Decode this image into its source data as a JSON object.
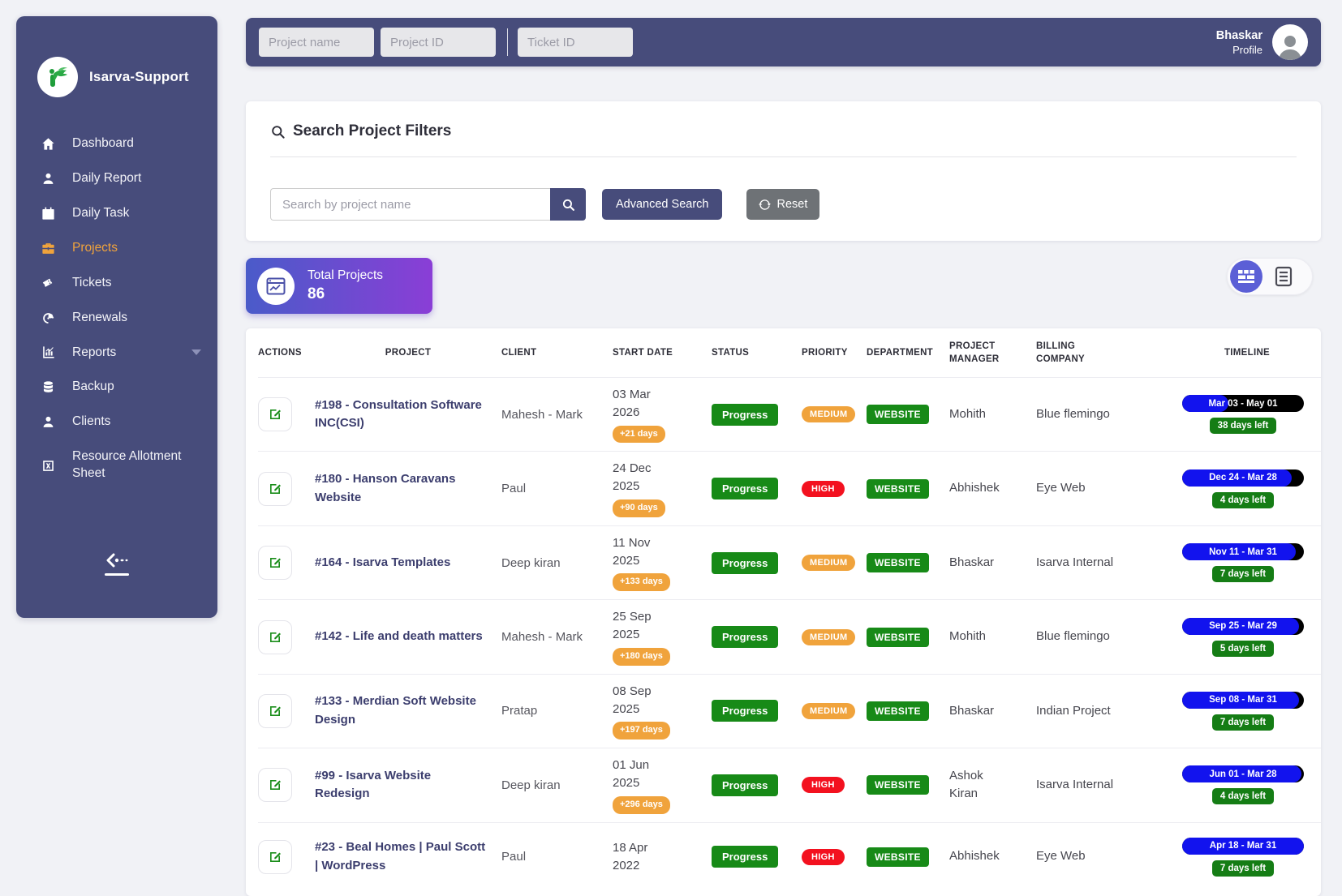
{
  "topbar": {
    "inputs": [
      {
        "placeholder": "Project name"
      },
      {
        "placeholder": "Project ID"
      },
      {
        "placeholder": "Ticket ID"
      }
    ],
    "profile": {
      "name": "Bhaskar",
      "role": "Profile"
    }
  },
  "sidebar": {
    "brand": "Isarva-Support",
    "items": [
      {
        "label": "Dashboard",
        "icon": "home-icon",
        "active": false
      },
      {
        "label": "Daily Report",
        "icon": "user-icon",
        "active": false
      },
      {
        "label": "Daily Task",
        "icon": "calendar-icon",
        "active": false
      },
      {
        "label": "Projects",
        "icon": "briefcase-icon",
        "active": true
      },
      {
        "label": "Tickets",
        "icon": "ticket-icon",
        "active": false
      },
      {
        "label": "Renewals",
        "icon": "renew-icon",
        "active": false
      },
      {
        "label": "Reports",
        "icon": "bar-chart-icon",
        "active": false,
        "has_caret": true
      },
      {
        "label": "Backup",
        "icon": "database-icon",
        "active": false
      },
      {
        "label": "Clients",
        "icon": "person-icon",
        "active": false
      },
      {
        "label": "Resource Allotment Sheet",
        "icon": "sheet-icon",
        "active": false
      }
    ]
  },
  "filters": {
    "title": "Search Project Filters",
    "search_placeholder": "Search by project name",
    "advanced_button": "Advanced Search",
    "reset_button": "Reset"
  },
  "summary": {
    "label": "Total Projects",
    "value": "86"
  },
  "table": {
    "headers": [
      "ACTIONS",
      "PROJECT",
      "CLIENT",
      "START DATE",
      "STATUS",
      "PRIORITY",
      "DEPARTMENT",
      "PROJECT MANAGER",
      "BILLING COMPANY",
      "TIMELINE"
    ],
    "rows": [
      {
        "project": "#198 - Consultation Software INC(CSI)",
        "client": "Mahesh - Mark",
        "start_date": "03 Mar 2026",
        "overdue": "+21 days",
        "status": "Progress",
        "priority": "MEDIUM",
        "department": "WEBSITE",
        "manager": "Mohith",
        "billing": "Blue flemingo",
        "timeline": {
          "range": "Mar 03 - May 01",
          "progress_pct": 38,
          "days_left": "38 days left"
        }
      },
      {
        "project": "#180 - Hanson Caravans Website",
        "client": "Paul",
        "start_date": "24 Dec 2025",
        "overdue": "+90 days",
        "status": "Progress",
        "priority": "HIGH",
        "department": "WEBSITE",
        "manager": "Abhishek",
        "billing": "Eye Web",
        "timeline": {
          "range": "Dec 24 - Mar 28",
          "progress_pct": 90,
          "days_left": "4 days left"
        }
      },
      {
        "project": "#164 - Isarva Templates",
        "client": "Deep kiran",
        "start_date": "11 Nov 2025",
        "overdue": "+133 days",
        "status": "Progress",
        "priority": "MEDIUM",
        "department": "WEBSITE",
        "manager": "Bhaskar",
        "billing": "Isarva Internal",
        "timeline": {
          "range": "Nov 11 - Mar 31",
          "progress_pct": 93,
          "days_left": "7 days left"
        }
      },
      {
        "project": "#142 - Life and death matters",
        "client": "Mahesh - Mark",
        "start_date": "25 Sep 2025",
        "overdue": "+180 days",
        "status": "Progress",
        "priority": "MEDIUM",
        "department": "WEBSITE",
        "manager": "Mohith",
        "billing": "Blue flemingo",
        "timeline": {
          "range": "Sep 25 - Mar 29",
          "progress_pct": 96,
          "days_left": "5 days left"
        }
      },
      {
        "project": "#133 - Merdian Soft Website Design",
        "client": "Pratap",
        "start_date": "08 Sep 2025",
        "overdue": "+197 days",
        "status": "Progress",
        "priority": "MEDIUM",
        "department": "WEBSITE",
        "manager": "Bhaskar",
        "billing": "Indian Project",
        "timeline": {
          "range": "Sep 08 - Mar 31",
          "progress_pct": 96,
          "days_left": "7 days left"
        }
      },
      {
        "project": "#99 - Isarva Website Redesign",
        "client": "Deep kiran",
        "start_date": "01 Jun 2025",
        "overdue": "+296 days",
        "status": "Progress",
        "priority": "HIGH",
        "department": "WEBSITE",
        "manager": "Ashok Kiran",
        "billing": "Isarva Internal",
        "timeline": {
          "range": "Jun 01 - Mar 28",
          "progress_pct": 98,
          "days_left": "4 days left"
        }
      },
      {
        "project": "#23 - Beal Homes | Paul Scott | WordPress",
        "client": "Paul",
        "start_date": "18 Apr 2022",
        "overdue": null,
        "status": "Progress",
        "priority": "HIGH",
        "department": "WEBSITE",
        "manager": "Abhishek",
        "billing": "Eye Web",
        "timeline": {
          "range": "Apr 18 - Mar 31",
          "progress_pct": 100,
          "days_left": "7 days left"
        }
      }
    ]
  },
  "colors": {
    "sidebar_bg": "#474c7b",
    "active_item_orange": "#f0a33c",
    "status_green": "#178a17",
    "priority_medium_orange": "#f0a33c",
    "priority_high_red": "#f3111f",
    "timeline_blue": "#1213ee",
    "timeline_track_black": "#000000",
    "days_left_green": "#157d15",
    "summary_gradient_start": "#4a5bc9",
    "summary_gradient_end": "#8a3ed6"
  }
}
